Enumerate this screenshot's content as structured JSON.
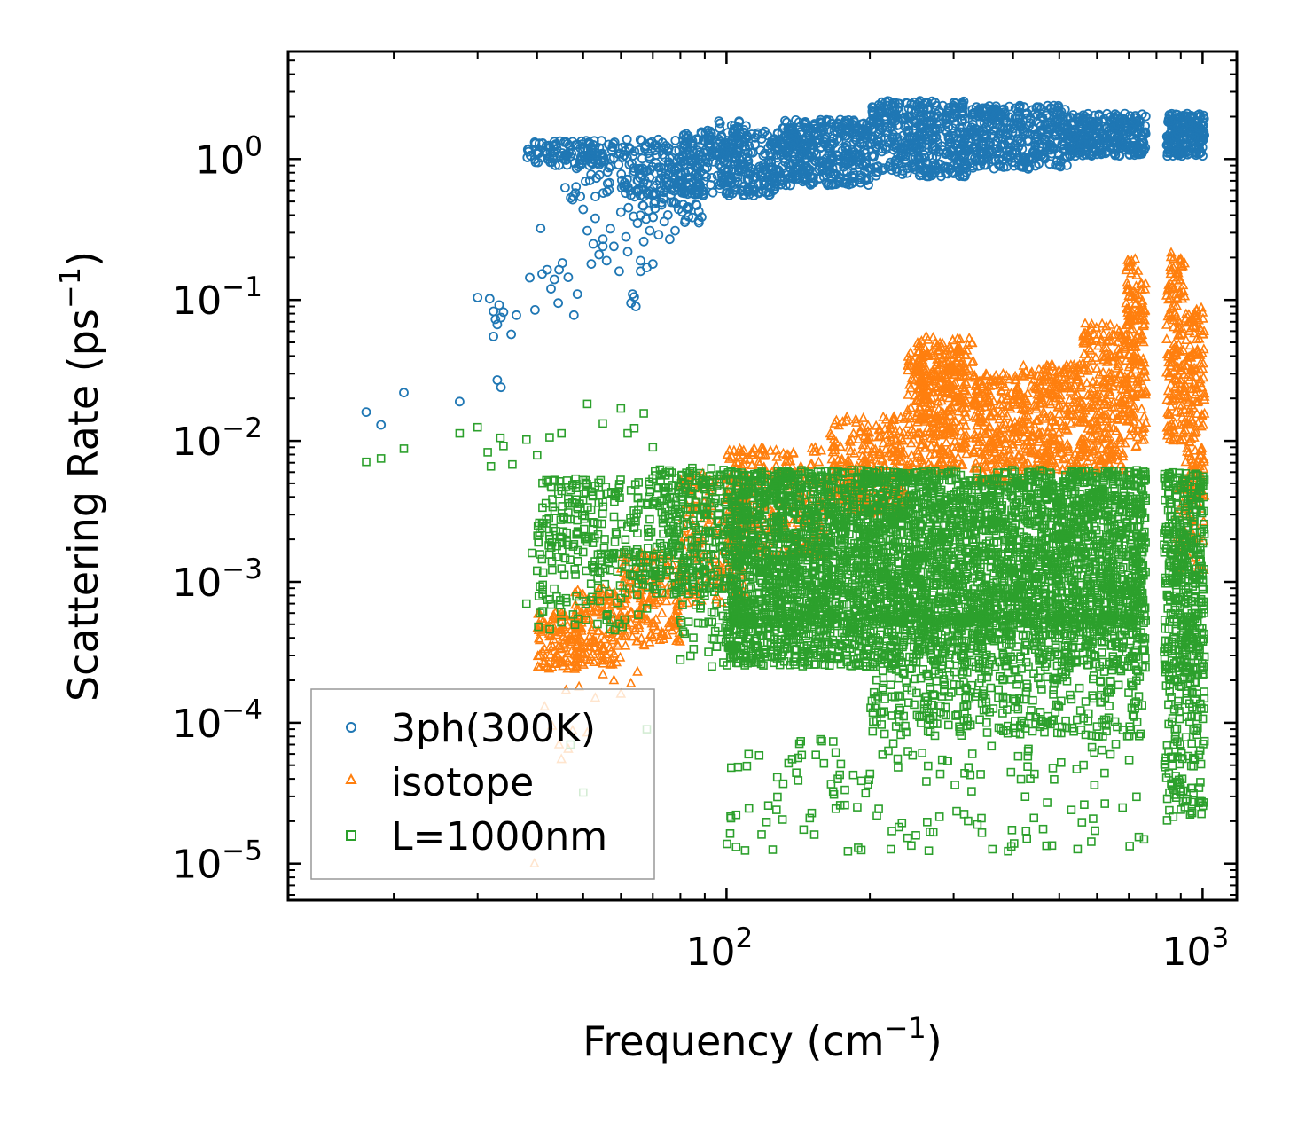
{
  "chart_data": {
    "type": "scatter",
    "title": "",
    "xlabel": "Frequency (cm",
    "xlabel_sup": "−1",
    "xlabel_end": ")",
    "ylabel": "Scattering Rate (ps",
    "ylabel_sup": "−1",
    "ylabel_end": ")",
    "xscale": "log",
    "yscale": "log",
    "xlim": [
      12,
      1180
    ],
    "ylim": [
      5.5e-06,
      5.8
    ],
    "x_ticks": [
      {
        "value": 100,
        "base": "10",
        "exp": "2"
      },
      {
        "value": 1000,
        "base": "10",
        "exp": "3"
      }
    ],
    "y_ticks": [
      {
        "value": 1,
        "base": "10",
        "exp": "0"
      },
      {
        "value": 0.1,
        "base": "10",
        "exp": "−1"
      },
      {
        "value": 0.01,
        "base": "10",
        "exp": "−2"
      },
      {
        "value": 0.001,
        "base": "10",
        "exp": "−3"
      },
      {
        "value": 0.0001,
        "base": "10",
        "exp": "−4"
      },
      {
        "value": 1e-05,
        "base": "10",
        "exp": "−5"
      }
    ],
    "legend_position": "lower-left",
    "series": [
      {
        "name": "3ph(300K)",
        "marker": "circle",
        "color": "#1f77b4",
        "points": [
          [
            17.5,
            0.016
          ],
          [
            18.8,
            0.013
          ],
          [
            21.0,
            0.022
          ],
          [
            27.5,
            0.019
          ],
          [
            33.0,
            0.027
          ],
          [
            33.6,
            0.024
          ],
          [
            30.0,
            0.104
          ],
          [
            31.8,
            0.102
          ],
          [
            32.4,
            0.083
          ],
          [
            32.7,
            0.073
          ],
          [
            33.0,
            0.067
          ],
          [
            33.3,
            0.092
          ],
          [
            33.6,
            0.075
          ],
          [
            34.0,
            0.082
          ],
          [
            32.4,
            0.055
          ],
          [
            35.3,
            0.057
          ],
          [
            36.2,
            0.078
          ],
          [
            38.6,
            0.144
          ],
          [
            39.6,
            0.085
          ],
          [
            40.7,
            0.322
          ],
          [
            42.8,
            0.12
          ],
          [
            43.5,
            0.14
          ],
          [
            44.5,
            0.164
          ],
          [
            45.2,
            0.183
          ],
          [
            44.3,
            0.095
          ],
          [
            48.6,
            0.11
          ],
          [
            47.8,
            0.078
          ],
          [
            41.0,
            0.153
          ],
          [
            42.0,
            0.164
          ],
          [
            46.5,
            0.145
          ],
          [
            50.0,
            0.44
          ],
          [
            51.0,
            0.31
          ],
          [
            52.5,
            0.25
          ],
          [
            53.0,
            0.38
          ],
          [
            54.0,
            0.21
          ],
          [
            55.0,
            0.27
          ],
          [
            56.0,
            0.19
          ],
          [
            57.0,
            0.32
          ],
          [
            58.0,
            0.24
          ],
          [
            59.5,
            0.16
          ],
          [
            60.0,
            0.42
          ],
          [
            61.5,
            0.28
          ],
          [
            62.0,
            0.22
          ],
          [
            63.0,
            0.095
          ],
          [
            63.5,
            0.11
          ],
          [
            64.0,
            0.105
          ],
          [
            65.0,
            0.35
          ],
          [
            66.0,
            0.19
          ],
          [
            67.0,
            0.26
          ],
          [
            68.0,
            0.17
          ],
          [
            69.0,
            0.31
          ],
          [
            70.0,
            0.18
          ],
          [
            72.0,
            0.29
          ],
          [
            74.0,
            0.36
          ],
          [
            76.0,
            0.27
          ],
          [
            78.0,
            0.31
          ],
          [
            64.5,
            0.09
          ],
          [
            66.0,
            0.16
          ],
          [
            52.0,
            0.18
          ],
          [
            55.0,
            0.24
          ]
        ],
        "bands": [
          {
            "x": [
              38,
              60
            ],
            "y": [
              0.9,
              1.35
            ],
            "n": 120
          },
          {
            "x": [
              45,
              60
            ],
            "y": [
              0.5,
              1.0
            ],
            "n": 30
          },
          {
            "x": [
              60,
              80
            ],
            "y": [
              0.55,
              1.4
            ],
            "n": 120
          },
          {
            "x": [
              62,
              90
            ],
            "y": [
              0.35,
              0.8
            ],
            "n": 70
          },
          {
            "x": [
              80,
              130
            ],
            "y": [
              0.55,
              1.6
            ],
            "n": 350
          },
          {
            "x": [
              90,
              110
            ],
            "y": [
              0.9,
              2.0
            ],
            "n": 40
          },
          {
            "x": [
              130,
              200
            ],
            "y": [
              0.65,
              1.9
            ],
            "n": 380
          },
          {
            "x": [
              200,
              320
            ],
            "y": [
              0.75,
              2.6
            ],
            "n": 420
          },
          {
            "x": [
              320,
              520
            ],
            "y": [
              0.85,
              2.4
            ],
            "n": 380
          },
          {
            "x": [
              520,
              760
            ],
            "y": [
              1.05,
              2.1
            ],
            "n": 300
          },
          {
            "x": [
              840,
              1010
            ],
            "y": [
              1.05,
              2.1
            ],
            "n": 200
          }
        ]
      },
      {
        "name": "isotope",
        "marker": "triangle",
        "color": "#ff7f0e",
        "points": [
          [
            39.5,
            1e-05
          ],
          [
            41.5,
            0.00013
          ],
          [
            43.0,
            9.5e-05
          ],
          [
            44.5,
            7e-05
          ],
          [
            45.0,
            5.5e-05
          ],
          [
            46.0,
            0.00017
          ],
          [
            48.0,
            0.00024
          ],
          [
            49.0,
            0.00018
          ],
          [
            51.0,
            8.5e-05
          ],
          [
            55.0,
            0.00022
          ],
          [
            60.0,
            0.00016
          ],
          [
            63.0,
            0.00019
          ],
          [
            65.0,
            0.00023
          ],
          [
            58.0,
            0.0002
          ],
          [
            40.5,
            0.0003
          ],
          [
            42.0,
            0.00025
          ],
          [
            46.5,
            6.5e-05
          ],
          [
            53.0,
            0.00015
          ],
          [
            47.5,
            8.8e-05
          ]
        ],
        "bands": [
          {
            "x": [
              40,
              50
            ],
            "y": [
              0.00024,
              0.0006
            ],
            "n": 120
          },
          {
            "x": [
              48,
              60
            ],
            "y": [
              0.00025,
              0.0009
            ],
            "n": 140
          },
          {
            "x": [
              60,
              80
            ],
            "y": [
              0.00035,
              0.0016
            ],
            "n": 170
          },
          {
            "x": [
              80,
              110
            ],
            "y": [
              0.0007,
              0.006
            ],
            "n": 180
          },
          {
            "x": [
              100,
              165
            ],
            "y": [
              0.0015,
              0.009
            ],
            "n": 260
          },
          {
            "x": [
              165,
              240
            ],
            "y": [
              0.003,
              0.015
            ],
            "n": 300
          },
          {
            "x": [
              240,
              320
            ],
            "y": [
              0.006,
              0.045
            ],
            "n": 340
          },
          {
            "x": [
              250,
              330
            ],
            "y": [
              0.02,
              0.055
            ],
            "n": 90
          },
          {
            "x": [
              330,
              420
            ],
            "y": [
              0.005,
              0.03
            ],
            "n": 260
          },
          {
            "x": [
              420,
              560
            ],
            "y": [
              0.006,
              0.035
            ],
            "n": 280
          },
          {
            "x": [
              560,
              690
            ],
            "y": [
              0.006,
              0.07
            ],
            "n": 260
          },
          {
            "x": [
              690,
              760
            ],
            "y": [
              0.008,
              0.2
            ],
            "n": 180
          },
          {
            "x": [
              840,
              920
            ],
            "y": [
              0.01,
              0.22
            ],
            "n": 160
          },
          {
            "x": [
              920,
              1010
            ],
            "y": [
              0.004,
              0.09
            ],
            "n": 160
          },
          {
            "x": [
              880,
              1010
            ],
            "y": [
              0.0012,
              0.006
            ],
            "n": 50
          }
        ]
      },
      {
        "name": "L=1000nm",
        "marker": "square",
        "color": "#2ca02c",
        "points": [
          [
            17.5,
            0.0071
          ],
          [
            18.8,
            0.0075
          ],
          [
            21.0,
            0.0088
          ],
          [
            27.5,
            0.0113
          ],
          [
            30.0,
            0.0125
          ],
          [
            31.5,
            0.0083
          ],
          [
            32.0,
            0.0066
          ],
          [
            33.5,
            0.0105
          ],
          [
            34.0,
            0.0092
          ],
          [
            35.5,
            0.0068
          ],
          [
            38.0,
            0.0102
          ],
          [
            40.0,
            0.0079
          ],
          [
            42.5,
            0.0106
          ],
          [
            45.0,
            0.0113
          ],
          [
            51.0,
            0.0183
          ],
          [
            55.0,
            0.0133
          ],
          [
            60.0,
            0.017
          ],
          [
            62.0,
            0.0113
          ],
          [
            64.0,
            0.0123
          ],
          [
            67.0,
            0.0157
          ],
          [
            70.0,
            0.009
          ],
          [
            38.0,
            0.0007
          ],
          [
            39.0,
            0.0016
          ],
          [
            40.0,
            0.0012
          ],
          [
            41.0,
            0.0024
          ],
          [
            43.0,
            0.0019
          ],
          [
            44.0,
            0.0015
          ],
          [
            68.0,
            9e-05
          ],
          [
            80.0,
            0.00028
          ],
          [
            50.0,
            3.2e-05
          ],
          [
            47.0,
            7e-05
          ],
          [
            41.0,
            0.0026
          ],
          [
            42.0,
            0.0026
          ]
        ],
        "bands": [
          {
            "x": [
              40,
              70
            ],
            "y": [
              0.0011,
              0.0055
            ],
            "n": 220
          },
          {
            "x": [
              40,
              70
            ],
            "y": [
              0.00045,
              0.0011
            ],
            "n": 60
          },
          {
            "x": [
              70,
              100
            ],
            "y": [
              0.0008,
              0.0065
            ],
            "n": 300
          },
          {
            "x": [
              80,
              140
            ],
            "y": [
              0.00025,
              0.0008
            ],
            "n": 90
          },
          {
            "x": [
              100,
              760
            ],
            "y": [
              0.0005,
              0.0062
            ],
            "n": 3600
          },
          {
            "x": [
              100,
              760
            ],
            "y": [
              0.00025,
              0.0006
            ],
            "n": 900
          },
          {
            "x": [
              200,
              760
            ],
            "y": [
              8e-05,
              0.00025
            ],
            "n": 320
          },
          {
            "x": [
              100,
              760
            ],
            "y": [
              1.2e-05,
              8e-05
            ],
            "n": 150
          },
          {
            "x": [
              830,
              1010
            ],
            "y": [
              0.0002,
              0.006
            ],
            "n": 420
          },
          {
            "x": [
              830,
              1010
            ],
            "y": [
              2e-05,
              0.0002
            ],
            "n": 120
          }
        ]
      }
    ]
  }
}
